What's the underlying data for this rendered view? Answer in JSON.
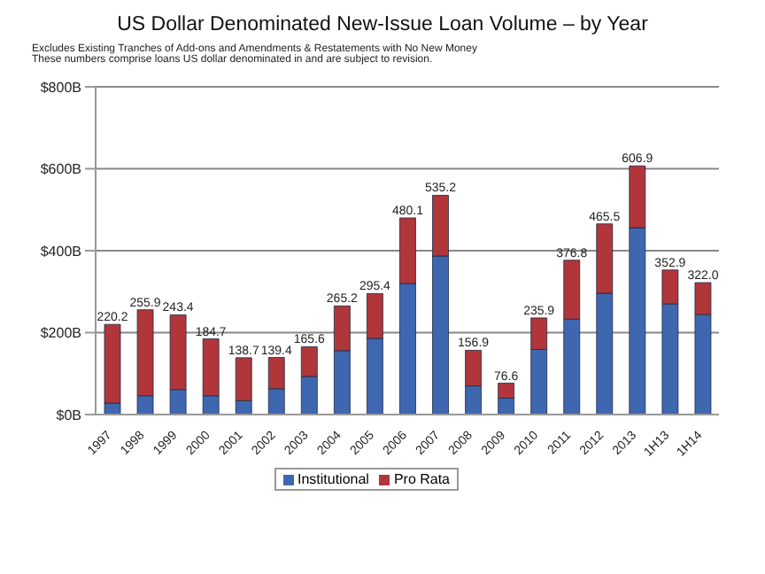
{
  "chart_data": {
    "type": "bar",
    "stacked": true,
    "title": "US Dollar Denominated New-Issue Loan Volume – by Year",
    "subtitle": "Excludes Existing Tranches of Add-ons and Amendments & Restatements with No New Money",
    "annotations": [
      "These numbers comprise loans US dollar denominated in and are subject to revision."
    ],
    "categories": [
      "1997",
      "1998",
      "1999",
      "2000",
      "2001",
      "2002",
      "2003",
      "2004",
      "2005",
      "2006",
      "2007",
      "2008",
      "2009",
      "2010",
      "2011",
      "2012",
      "2013",
      "1H13",
      "1H14"
    ],
    "series": [
      {
        "name": "Institutional",
        "color": "#3f67b0",
        "values": [
          28,
          46,
          61,
          46,
          34,
          63,
          93,
          156,
          186,
          320,
          387,
          70,
          40,
          159,
          233,
          296,
          456,
          270,
          244
        ]
      },
      {
        "name": "Pro Rata",
        "color": "#b0363a",
        "values": [
          192.2,
          209.9,
          182.4,
          138.7,
          104.7,
          76.4,
          72.6,
          109.2,
          109.4,
          160.1,
          148.2,
          86.9,
          36.6,
          76.9,
          143.8,
          169.5,
          150.9,
          82.9,
          78
        ]
      }
    ],
    "totals": [
      "220.2",
      "255.9",
      "243.4",
      "184.7",
      "138.7",
      "139.4",
      "165.6",
      "265.2",
      "295.4",
      "480.1",
      "535.2",
      "156.9",
      "76.6",
      "235.9",
      "376.8",
      "465.5",
      "606.9",
      "352.9",
      "322.0"
    ],
    "ylim": [
      0,
      800
    ],
    "yticks": [
      {
        "value": 0,
        "label": "$0B"
      },
      {
        "value": 200,
        "label": "$200B"
      },
      {
        "value": 400,
        "label": "$400B"
      },
      {
        "value": 600,
        "label": "$600B"
      },
      {
        "value": 800,
        "label": "$800B"
      }
    ],
    "grid": "y",
    "legend": "bottom"
  }
}
